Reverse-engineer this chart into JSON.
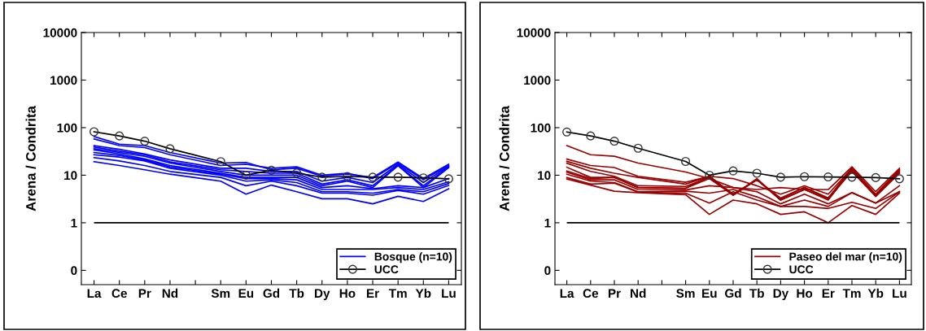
{
  "chart_data": [
    {
      "type": "line",
      "ylabel": "Arena / Condrita",
      "categories": [
        "La",
        "Ce",
        "Pr",
        "Nd",
        null,
        "Sm",
        "Eu",
        "Gd",
        "Tb",
        "Dy",
        "Ho",
        "Er",
        "Tm",
        "Yb",
        "Lu"
      ],
      "log": true,
      "ylim": [
        0.05,
        10000
      ],
      "yticks": [
        {
          "value": 0.1,
          "label": "0"
        },
        1,
        10,
        100,
        1000,
        10000
      ],
      "grid": false,
      "legend": "bottom right",
      "marker": "none",
      "line_style": "solid",
      "ref_lines": [
        {
          "axis": "y",
          "value": 1,
          "label": null,
          "color": "#000000"
        }
      ],
      "series": [
        {
          "name": "Bosque (n=10)",
          "color": "#0000ff",
          "values": [
            65,
            45,
            42,
            30,
            null,
            18,
            18.5,
            13,
            14,
            9.5,
            10.5,
            9,
            19,
            8.5,
            17
          ]
        },
        {
          "color": "#0000ff",
          "values": [
            58,
            42,
            38,
            27,
            null,
            16,
            17,
            14,
            15,
            10,
            11,
            8.5,
            18,
            8,
            16
          ]
        },
        {
          "color": "#0000ff",
          "values": [
            42,
            35,
            28,
            21,
            null,
            14,
            14,
            12,
            12,
            7.5,
            9,
            7,
            17,
            7,
            15.5
          ]
        },
        {
          "color": "#0000ff",
          "values": [
            39,
            32,
            27,
            19,
            null,
            13,
            12,
            11,
            11,
            6.5,
            8,
            6,
            16,
            6,
            15
          ]
        },
        {
          "color": "#0000ff",
          "values": [
            36,
            30,
            25,
            18,
            null,
            12,
            10,
            10,
            10,
            6,
            7.5,
            5.5,
            16,
            5.5,
            14.5
          ]
        },
        {
          "color": "#0000ff",
          "values": [
            34,
            28,
            22,
            16,
            null,
            11,
            9,
            9,
            9,
            5.5,
            6,
            5.2,
            6,
            5.5,
            8.5
          ]
        },
        {
          "color": "#0000ff",
          "values": [
            30,
            26,
            21,
            15,
            null,
            10.5,
            8.5,
            8.5,
            8,
            5,
            5,
            5,
            5.5,
            5,
            7.3
          ]
        },
        {
          "color": "#0000ff",
          "values": [
            27,
            24,
            20,
            14,
            null,
            10,
            7.5,
            8,
            7,
            4.5,
            4.5,
            4.2,
            5,
            4.5,
            6.7
          ]
        },
        {
          "color": "#0000ff",
          "values": [
            23.5,
            20,
            16,
            12,
            null,
            9,
            6,
            7.5,
            6,
            4.2,
            4.2,
            3.8,
            4.8,
            4,
            6.1
          ]
        },
        {
          "color": "#0000ff",
          "values": [
            19.3,
            16,
            13,
            10.5,
            null,
            7.5,
            4,
            6.2,
            4.5,
            3.2,
            3.2,
            2.5,
            3.6,
            2.8,
            5.2
          ]
        },
        {
          "name": "UCC",
          "color": "#000000",
          "marker": "circle",
          "values": [
            82,
            67,
            52,
            36,
            null,
            19.3,
            10,
            12.7,
            11.1,
            9.1,
            9.4,
            9.1,
            9.1,
            8.8,
            8.4
          ]
        }
      ]
    },
    {
      "type": "line",
      "ylabel": "Arena / Condrita",
      "categories": [
        "La",
        "Ce",
        "Pr",
        "Nd",
        null,
        "Sm",
        "Eu",
        "Gd",
        "Tb",
        "Dy",
        "Ho",
        "Er",
        "Tm",
        "Yb",
        "Lu"
      ],
      "log": true,
      "ylim": [
        0.05,
        10000
      ],
      "yticks": [
        {
          "value": 0.1,
          "label": "0"
        },
        1,
        10,
        100,
        1000,
        10000
      ],
      "grid": false,
      "legend": "bottom right",
      "marker": "none",
      "line_style": "solid",
      "ref_lines": [
        {
          "axis": "y",
          "value": 1,
          "label": null,
          "color": "#000000"
        }
      ],
      "series": [
        {
          "name": "Paseo del mar (n=10)",
          "color": "#990000",
          "values": [
            42,
            27,
            25,
            18,
            null,
            11.7,
            8.5,
            5.5,
            5,
            5.5,
            5,
            5,
            15,
            4.5,
            14
          ]
        },
        {
          "color": "#990000",
          "values": [
            21.8,
            16,
            14.5,
            9.5,
            null,
            7.1,
            9.5,
            8.5,
            6,
            4,
            6,
            4,
            14,
            4,
            13
          ]
        },
        {
          "color": "#990000",
          "values": [
            19.6,
            14,
            11,
            9,
            null,
            6.5,
            9.5,
            4,
            8,
            3.3,
            5.5,
            3.3,
            13,
            3.6,
            12
          ]
        },
        {
          "color": "#990000",
          "values": [
            17.9,
            12,
            9.5,
            6,
            null,
            5.8,
            9,
            4,
            8,
            3.2,
            5.5,
            3.3,
            14,
            3.8,
            12.5
          ]
        },
        {
          "color": "#990000",
          "values": [
            14.7,
            9,
            9,
            5.5,
            null,
            5.3,
            9.5,
            3.8,
            8.5,
            3,
            5,
            3,
            13,
            3.6,
            11.5
          ]
        },
        {
          "color": "#990000",
          "values": [
            12.3,
            8.5,
            9,
            5.5,
            null,
            5.3,
            8.5,
            3.8,
            8,
            3,
            5,
            3.2,
            12,
            3.6,
            11
          ]
        },
        {
          "color": "#990000",
          "values": [
            11.6,
            8,
            8,
            5,
            null,
            4.9,
            6,
            5.5,
            4.5,
            2.5,
            4,
            2.5,
            4.3,
            2.6,
            6
          ]
        },
        {
          "color": "#990000",
          "values": [
            10.5,
            7.5,
            7,
            4.5,
            null,
            4.6,
            4.2,
            5,
            3.5,
            2.2,
            3,
            2.2,
            4.3,
            2.6,
            4.5
          ]
        },
        {
          "color": "#990000",
          "values": [
            8.9,
            6.5,
            6.8,
            4.4,
            null,
            4.2,
            2.6,
            4.5,
            3,
            2.2,
            2.2,
            2.0,
            2.7,
            2,
            4.5
          ]
        },
        {
          "color": "#990000",
          "values": [
            8.3,
            6.2,
            4.6,
            4.3,
            null,
            3.9,
            1.5,
            3,
            2.5,
            1.5,
            1.7,
            1.0,
            2.3,
            1.5,
            4.2
          ]
        },
        {
          "name": "UCC",
          "color": "#000000",
          "marker": "circle",
          "values": [
            81,
            67,
            52,
            37,
            null,
            19.5,
            10,
            12.3,
            11,
            9.1,
            9.3,
            9.2,
            9.1,
            8.9,
            8.4
          ]
        }
      ]
    }
  ]
}
